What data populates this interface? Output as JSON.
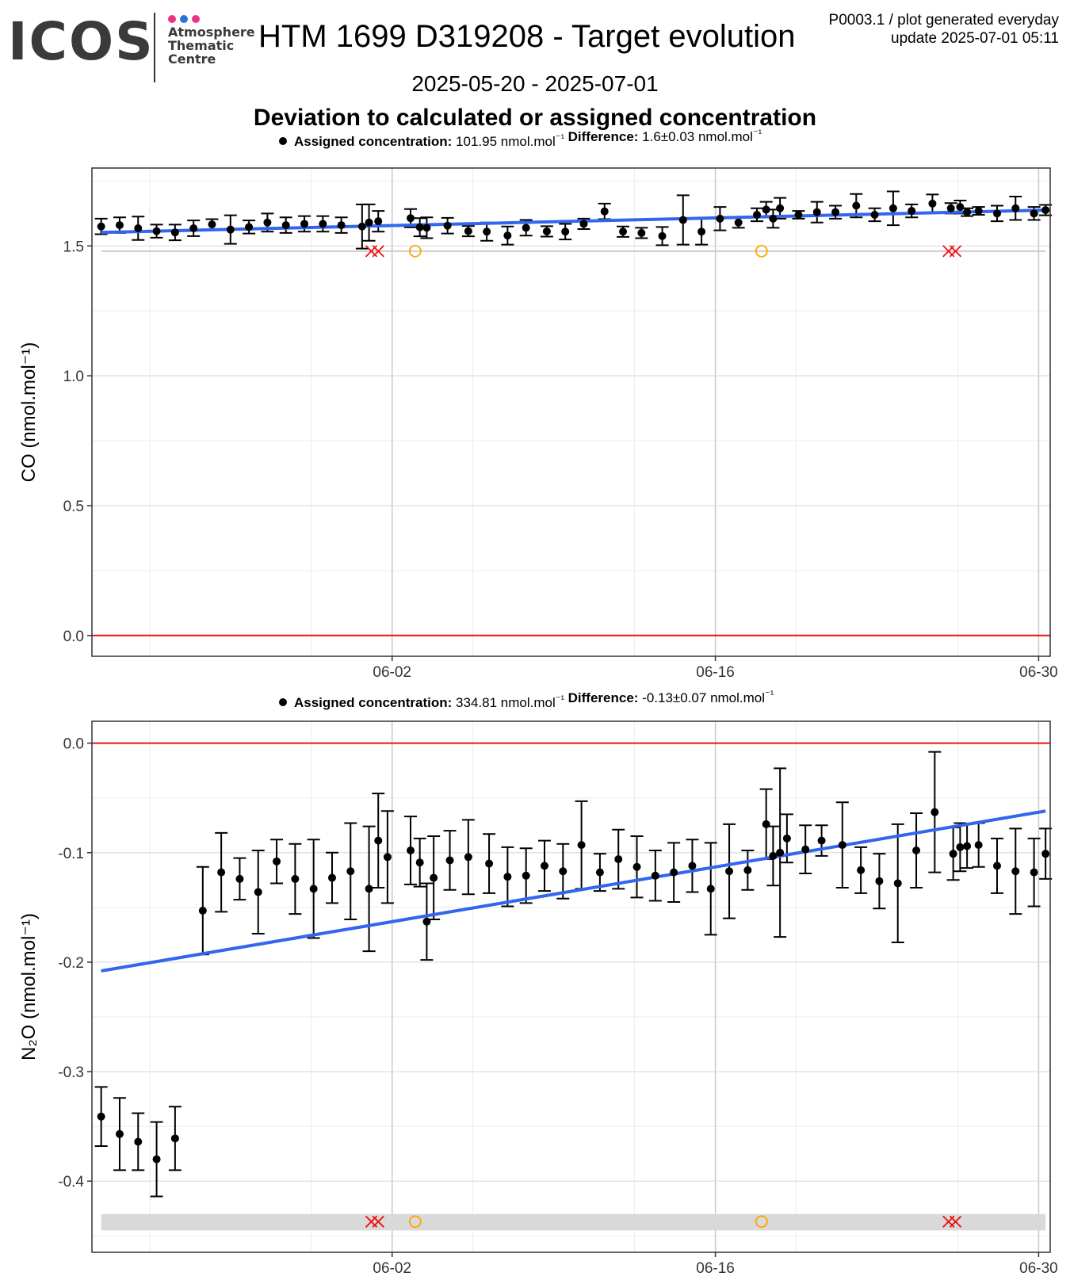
{
  "header": {
    "logo_text": "ICOS",
    "logo_subtitle": [
      "Atmosphere",
      "Thematic",
      "Centre"
    ],
    "logo_dot_colors": [
      "#e5357e",
      "#2f6fd6",
      "#e5357e"
    ],
    "title": "HTM 1699 D319208 - Target evolution",
    "top_right_line1": "P0003.1 / plot generated everyday",
    "top_right_line2": "update  2025-07-01 05:11",
    "date_range": "2025-05-20 - 2025-07-01",
    "subtitle": "Deviation to calculated or assigned concentration"
  },
  "colors": {
    "points": "#000000",
    "trend": "#3366ee",
    "zero_line": "#ee1111",
    "flag_cross": "#ee1111",
    "flag_circle": "#ffa500",
    "flag_band": "#d9d9d9"
  },
  "chart_data": [
    {
      "type": "scatter",
      "legend": {
        "assigned_label": "Assigned concentration:",
        "assigned_value": "101.95 nmol.mol",
        "difference_label": "Difference:",
        "difference_value": "1.6±0.03 nmol.mol"
      },
      "ylabel": "CO (nmol.mol⁻¹)",
      "ylim": [
        -0.08,
        1.8
      ],
      "yticks": [
        0.0,
        0.5,
        1.0,
        1.5
      ],
      "ytick_labels": [
        "0.0",
        "0.5",
        "1.0",
        "1.5"
      ],
      "xlim": [
        -13,
        28.5
      ],
      "xtick_labels": [
        "06-02",
        "06-16",
        "06-30"
      ],
      "xtick_offsets": [
        0,
        14,
        28
      ],
      "x_origin": "2025-06-02",
      "x": [
        -12.6,
        -11.8,
        -11.0,
        -10.2,
        -9.4,
        -8.6,
        -7.8,
        -7.0,
        -6.2,
        -5.4,
        -4.6,
        -3.8,
        -3.0,
        -2.2,
        -1.3,
        -1.0,
        -0.6,
        0.8,
        1.2,
        1.5,
        2.4,
        3.3,
        4.1,
        5.0,
        5.8,
        6.7,
        7.5,
        8.3,
        9.2,
        10.0,
        10.8,
        11.7,
        12.6,
        13.4,
        14.2,
        15.0,
        15.8,
        16.2,
        16.5,
        16.8,
        17.6,
        18.4,
        19.2,
        20.1,
        20.9,
        21.7,
        22.5,
        23.4,
        24.2,
        24.6,
        24.9,
        25.4,
        26.2,
        27.0,
        27.8,
        28.3
      ],
      "values": [
        1.575,
        1.58,
        1.568,
        1.557,
        1.552,
        1.568,
        1.583,
        1.563,
        1.573,
        1.59,
        1.58,
        1.585,
        1.585,
        1.58,
        1.575,
        1.59,
        1.595,
        1.607,
        1.572,
        1.57,
        1.578,
        1.557,
        1.555,
        1.54,
        1.57,
        1.556,
        1.555,
        1.585,
        1.633,
        1.555,
        1.55,
        1.538,
        1.6,
        1.555,
        1.605,
        1.59,
        1.62,
        1.64,
        1.605,
        1.645,
        1.62,
        1.63,
        1.63,
        1.655,
        1.62,
        1.645,
        1.635,
        1.663,
        1.645,
        1.65,
        1.63,
        1.635,
        1.625,
        1.645,
        1.625,
        1.638
      ],
      "errors": [
        0.03,
        0.03,
        0.045,
        0.025,
        0.03,
        0.03,
        0.02,
        0.055,
        0.025,
        0.035,
        0.03,
        0.03,
        0.03,
        0.03,
        0.085,
        0.07,
        0.04,
        0.035,
        0.035,
        0.04,
        0.03,
        0.02,
        0.035,
        0.035,
        0.03,
        0.02,
        0.03,
        0.02,
        0.03,
        0.02,
        0.02,
        0.035,
        0.095,
        0.05,
        0.045,
        0.02,
        0.025,
        0.03,
        0.035,
        0.04,
        0.015,
        0.04,
        0.025,
        0.045,
        0.025,
        0.065,
        0.025,
        0.035,
        0.02,
        0.025,
        0.015,
        0.015,
        0.03,
        0.045,
        0.025,
        0.02
      ],
      "trend": {
        "x": [
          -12.6,
          28.3
        ],
        "y": [
          1.552,
          1.638
        ]
      },
      "flag_y": 1.48,
      "flags_cross": [
        -0.9,
        -0.6,
        24.1,
        24.4
      ],
      "flags_circle": [
        1.0,
        16.0
      ],
      "flag_band": false
    },
    {
      "type": "scatter",
      "legend": {
        "assigned_label": "Assigned concentration:",
        "assigned_value": "334.81 nmol.mol",
        "difference_label": "Difference:",
        "difference_value": "-0.13±0.07 nmol.mol"
      },
      "ylabel": "N₂O (nmol.mol⁻¹)",
      "ylim": [
        -0.465,
        0.02
      ],
      "yticks": [
        0.0,
        -0.1,
        -0.2,
        -0.3,
        -0.4
      ],
      "ytick_labels": [
        "0.0",
        "-0.1",
        "-0.2",
        "-0.3",
        "-0.4"
      ],
      "xlim": [
        -13,
        28.5
      ],
      "xtick_labels": [
        "06-02",
        "06-16",
        "06-30"
      ],
      "xtick_offsets": [
        0,
        14,
        28
      ],
      "x_origin": "2025-06-02",
      "x": [
        -12.6,
        -11.8,
        -11.0,
        -10.2,
        -9.4,
        -8.2,
        -7.4,
        -6.6,
        -5.8,
        -5.0,
        -4.2,
        -3.4,
        -2.6,
        -1.8,
        -1.0,
        -0.6,
        -0.2,
        0.8,
        1.2,
        1.5,
        1.8,
        2.5,
        3.3,
        4.2,
        5.0,
        5.8,
        6.6,
        7.4,
        8.2,
        9.0,
        9.8,
        10.6,
        11.4,
        12.2,
        13.0,
        13.8,
        14.6,
        15.4,
        16.2,
        16.5,
        16.8,
        17.1,
        17.9,
        18.6,
        19.5,
        20.3,
        21.1,
        21.9,
        22.7,
        23.5,
        24.3,
        24.6,
        24.9,
        25.4,
        26.2,
        27.0,
        27.8,
        28.3
      ],
      "values": [
        -0.341,
        -0.357,
        -0.364,
        -0.38,
        -0.361,
        -0.153,
        -0.118,
        -0.124,
        -0.136,
        -0.108,
        -0.124,
        -0.133,
        -0.123,
        -0.117,
        -0.133,
        -0.089,
        -0.104,
        -0.098,
        -0.109,
        -0.163,
        -0.123,
        -0.107,
        -0.104,
        -0.11,
        -0.122,
        -0.121,
        -0.112,
        -0.117,
        -0.093,
        -0.118,
        -0.106,
        -0.113,
        -0.121,
        -0.118,
        -0.112,
        -0.133,
        -0.117,
        -0.116,
        -0.074,
        -0.103,
        -0.1,
        -0.087,
        -0.097,
        -0.089,
        -0.093,
        -0.116,
        -0.126,
        -0.128,
        -0.098,
        -0.063,
        -0.101,
        -0.095,
        -0.094,
        -0.093,
        -0.112,
        -0.117,
        -0.118,
        -0.101
      ],
      "errors": [
        0.027,
        0.033,
        0.026,
        0.034,
        0.029,
        0.04,
        0.036,
        0.019,
        0.038,
        0.02,
        0.032,
        0.045,
        0.023,
        0.044,
        0.057,
        0.043,
        0.042,
        0.031,
        0.022,
        0.035,
        0.038,
        0.027,
        0.034,
        0.027,
        0.027,
        0.025,
        0.023,
        0.025,
        0.04,
        0.017,
        0.027,
        0.028,
        0.023,
        0.027,
        0.024,
        0.042,
        0.043,
        0.018,
        0.032,
        0.027,
        0.077,
        0.022,
        0.022,
        0.014,
        0.039,
        0.021,
        0.025,
        0.054,
        0.034,
        0.055,
        0.024,
        0.022,
        0.02,
        0.02,
        0.025,
        0.039,
        0.031,
        0.023
      ],
      "trend": {
        "x": [
          -12.6,
          28.3
        ],
        "y": [
          -0.208,
          -0.062
        ]
      },
      "flag_y": -0.437,
      "flags_cross": [
        -0.9,
        -0.6,
        24.1,
        24.4
      ],
      "flags_circle": [
        1.0,
        16.0
      ],
      "flag_band": true,
      "flag_band_range": [
        -0.445,
        -0.43
      ]
    }
  ]
}
